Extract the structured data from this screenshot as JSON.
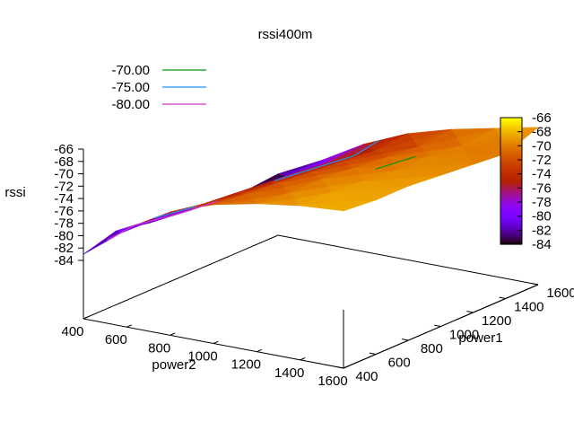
{
  "chart_data": {
    "type": "surface3d",
    "title": "rssi400m",
    "xlabel": "power2",
    "ylabel": "power1",
    "zlabel": "rssi",
    "x_ticks": [
      400,
      600,
      800,
      1000,
      1200,
      1400,
      1600
    ],
    "y_ticks": [
      400,
      600,
      800,
      1000,
      1200,
      1400,
      1600
    ],
    "z_ticks": [
      -66,
      -68,
      -70,
      -72,
      -74,
      -76,
      -78,
      -80,
      -82,
      -84
    ],
    "colorbar_ticks": [
      -66,
      -68,
      -70,
      -72,
      -74,
      -76,
      -78,
      -80,
      -82,
      -84
    ],
    "zlim": [
      -84,
      -66
    ],
    "x": [
      400,
      600,
      800,
      1000,
      1200,
      1400,
      1600
    ],
    "y": [
      400,
      600,
      800,
      1000,
      1200,
      1400,
      1600
    ],
    "z": [
      [
        -83.0,
        -77.5,
        -73.5,
        -71.0,
        -69.5,
        -68.5,
        -68.0
      ],
      [
        -81.5,
        -78.0,
        -74.5,
        -71.5,
        -70.0,
        -68.5,
        -68.5
      ],
      [
        -82.5,
        -79.0,
        -75.0,
        -72.0,
        -70.0,
        -69.0,
        -68.5
      ],
      [
        -83.0,
        -79.5,
        -75.5,
        -72.5,
        -70.5,
        -69.5,
        -69.0
      ],
      [
        -83.5,
        -80.0,
        -76.0,
        -73.0,
        -71.0,
        -69.5,
        -69.5
      ],
      [
        -84.0,
        -80.5,
        -76.5,
        -73.5,
        -71.5,
        -70.0,
        -70.0
      ],
      [
        -83.5,
        -80.0,
        -76.0,
        -73.0,
        -71.0,
        -69.5,
        -68.0
      ]
    ],
    "contour_levels": [
      {
        "label": "-70.00",
        "value": -70,
        "color": "#009900"
      },
      {
        "label": "-75.00",
        "value": -75,
        "color": "#1e90ff"
      },
      {
        "label": "-80.00",
        "value": -80,
        "color": "#cc33cc"
      }
    ],
    "colormap": "gnuplot-pm3d",
    "legend_position": "top-left",
    "colorbar_position": "right"
  }
}
